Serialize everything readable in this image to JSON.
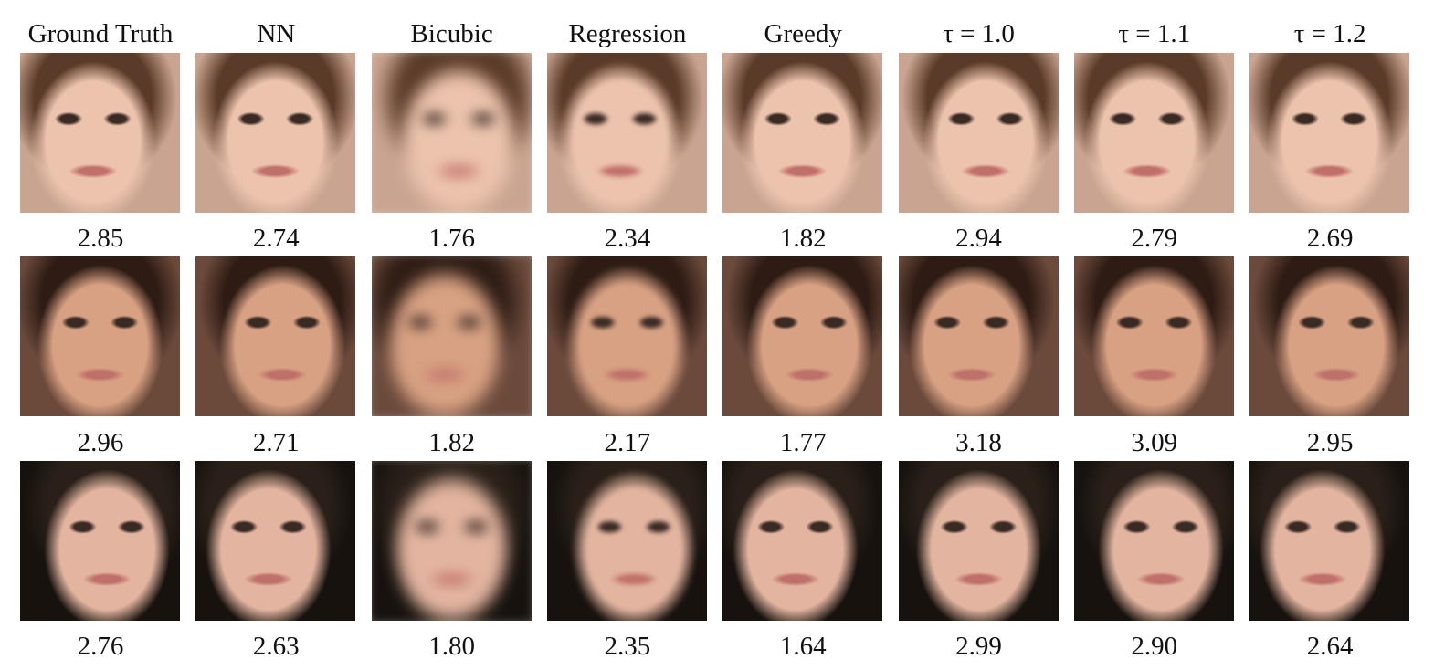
{
  "figure": {
    "columns": [
      "Ground Truth",
      "NN",
      "Bicubic",
      "Regression",
      "Greedy",
      "τ = 1.0",
      "τ = 1.1",
      "τ = 1.2"
    ],
    "rows": [
      {
        "scores": [
          "2.85",
          "2.74",
          "1.76",
          "2.34",
          "1.82",
          "2.94",
          "2.79",
          "2.69"
        ]
      },
      {
        "scores": [
          "2.96",
          "2.71",
          "1.82",
          "2.17",
          "1.77",
          "3.18",
          "3.09",
          "2.95"
        ]
      },
      {
        "scores": [
          "2.76",
          "2.63",
          "1.80",
          "2.35",
          "1.64",
          "2.99",
          "2.90",
          "2.64"
        ]
      }
    ]
  }
}
